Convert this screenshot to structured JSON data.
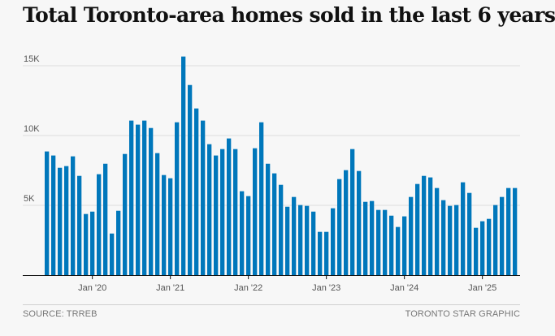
{
  "chart_data": {
    "type": "bar",
    "title": "Total Toronto-area homes sold in the last 6 years",
    "xlabel": "",
    "ylabel": "",
    "ylim": [
      0,
      15000
    ],
    "grid": true,
    "start_month": "2019-06",
    "y_ticks": [
      {
        "value": 5000,
        "label": "5K"
      },
      {
        "value": 10000,
        "label": "10K"
      },
      {
        "value": 15000,
        "label": "15K"
      }
    ],
    "x_ticks": [
      {
        "index": 7,
        "label": "Jan '20"
      },
      {
        "index": 19,
        "label": "Jan '21"
      },
      {
        "index": 31,
        "label": "Jan '22"
      },
      {
        "index": 43,
        "label": "Jan '23"
      },
      {
        "index": 55,
        "label": "Jan '24"
      },
      {
        "index": 67,
        "label": "Jan '25"
      }
    ],
    "color": "#0077bb",
    "values": [
      8860,
      8570,
      7690,
      7810,
      8510,
      7110,
      4380,
      4550,
      7230,
      7980,
      2980,
      4610,
      8680,
      11070,
      10780,
      11070,
      10540,
      8740,
      7170,
      6940,
      10950,
      15660,
      13620,
      11940,
      11070,
      9380,
      8570,
      9030,
      9790,
      9030,
      6010,
      5660,
      9090,
      10950,
      7980,
      7290,
      6470,
      4900,
      5600,
      5020,
      4960,
      4550,
      3100,
      3100,
      4790,
      6880,
      7520,
      9030,
      7460,
      5250,
      5310,
      4670,
      4670,
      4260,
      3450,
      4210,
      5600,
      6530,
      7110,
      7000,
      6240,
      5370,
      4960,
      5020,
      6650,
      5890,
      3390,
      3860,
      4030,
      5020,
      5600,
      6240,
      6240
    ]
  },
  "footer": {
    "source": "SOURCE: TRREB",
    "credit": "TORONTO STAR GRAPHIC"
  }
}
